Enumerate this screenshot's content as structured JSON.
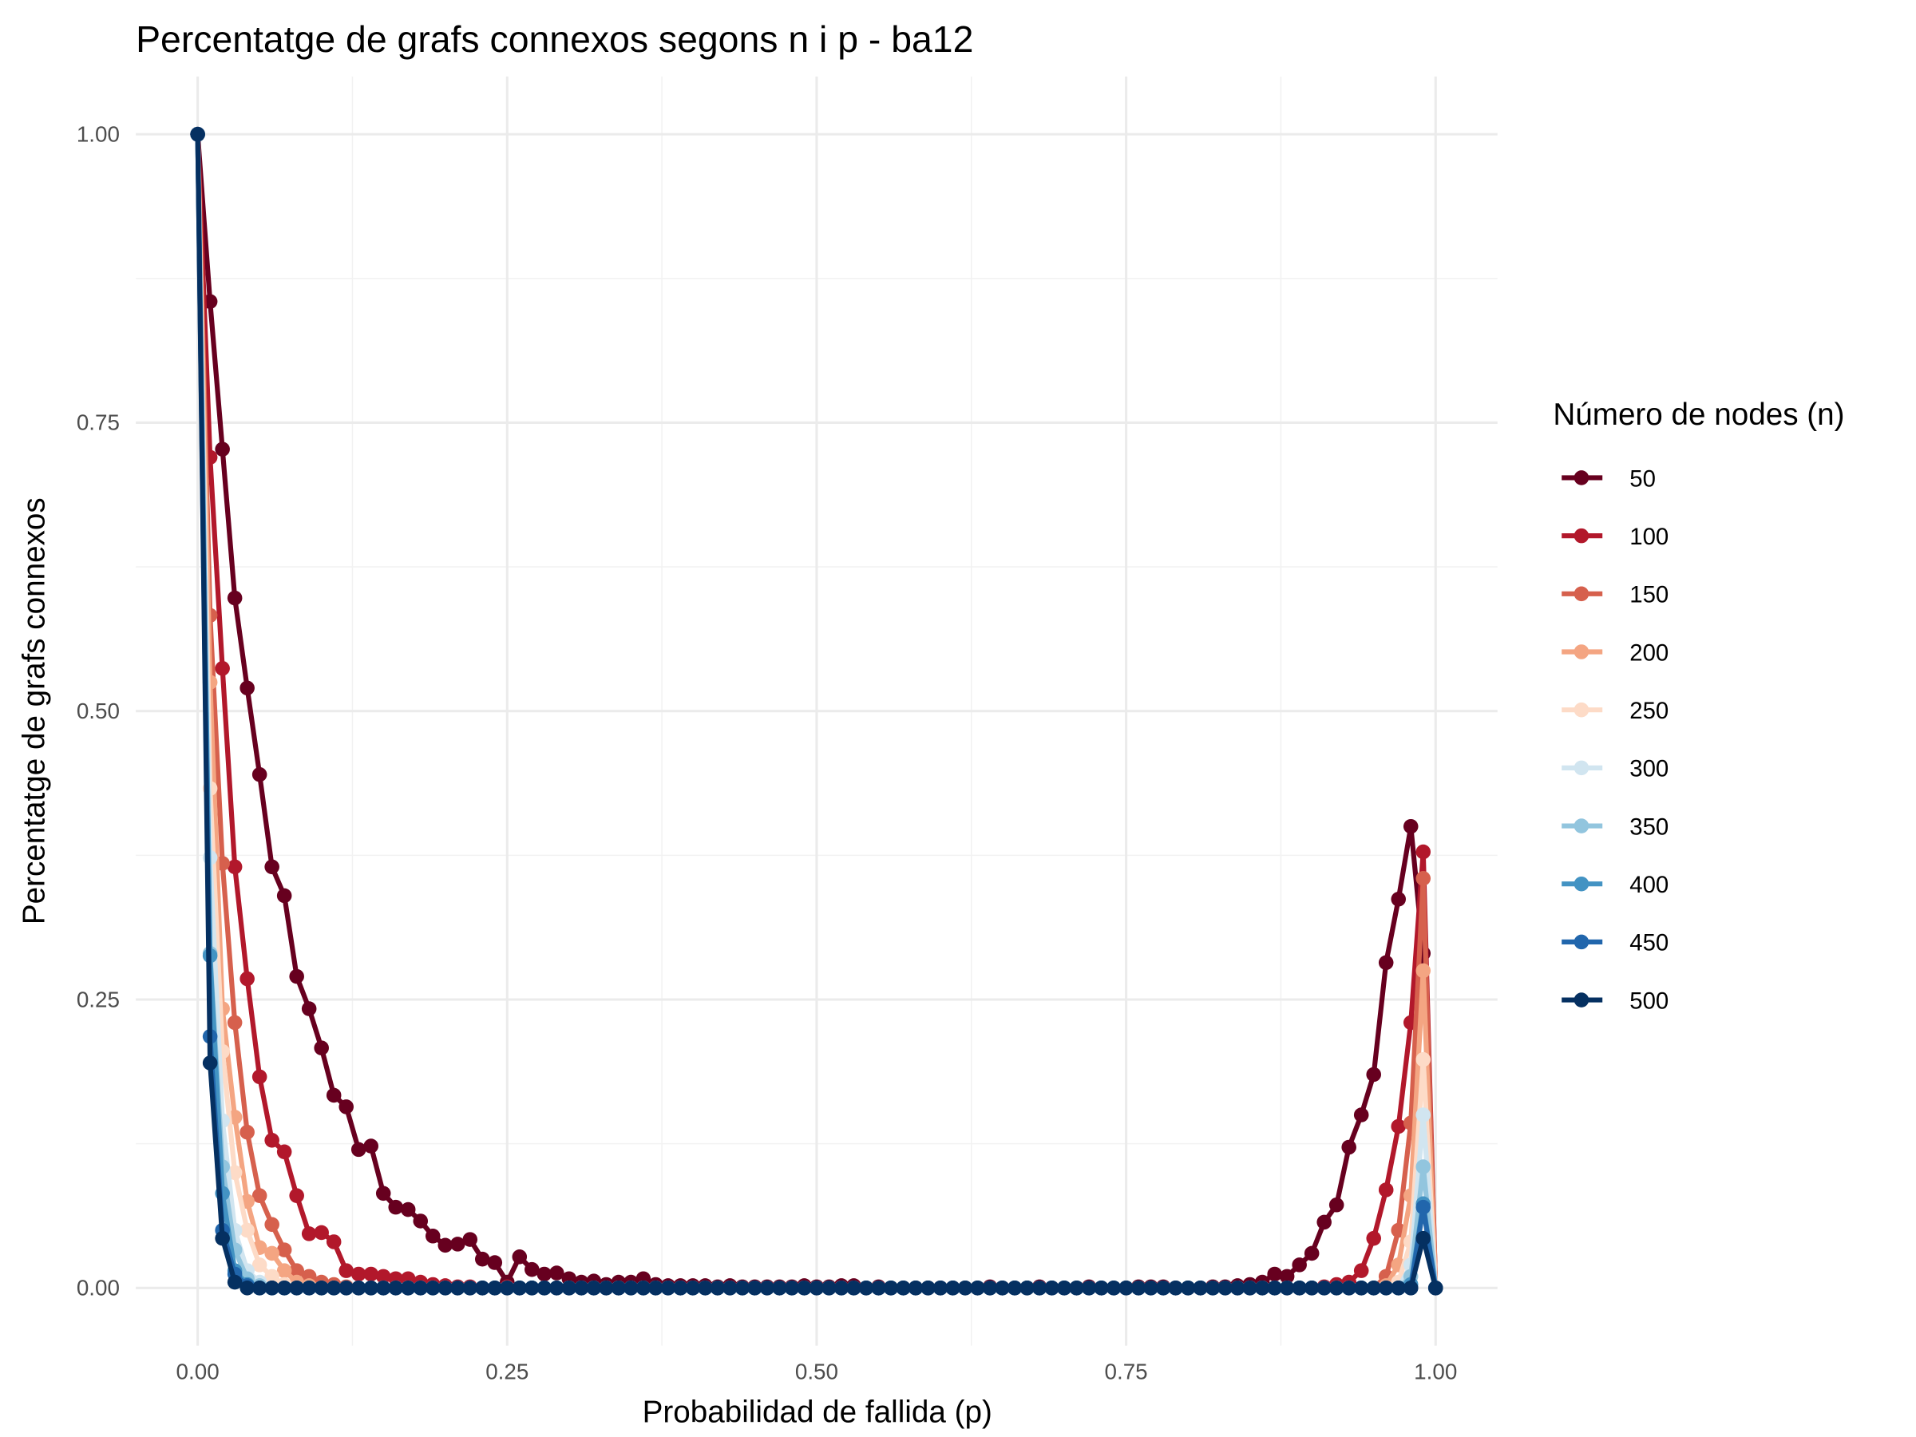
{
  "chart_data": {
    "type": "line",
    "title": "Percentatge de grafs connexos segons n i p - ba12",
    "x_label": "Probabilidad de fallida (p)",
    "y_label": "Percentatge de grafs connexos",
    "legend_title": "Número de nodes (n)",
    "legend_position": "right",
    "grid": true,
    "minor_grid": true,
    "markers": true,
    "xlim": [
      -0.05,
      1.05
    ],
    "ylim": [
      -0.05,
      1.05
    ],
    "xticks": [
      {
        "value": 0,
        "label": "0.00"
      },
      {
        "value": 0.25,
        "label": "0.25"
      },
      {
        "value": 0.5,
        "label": "0.50"
      },
      {
        "value": 0.75,
        "label": "0.75"
      },
      {
        "value": 1,
        "label": "1.00"
      }
    ],
    "yticks": [
      {
        "value": 0,
        "label": "0.00"
      },
      {
        "value": 0.25,
        "label": "0.25"
      },
      {
        "value": 0.5,
        "label": "0.50"
      },
      {
        "value": 0.75,
        "label": "0.75"
      },
      {
        "value": 1,
        "label": "1.00"
      }
    ],
    "x": [
      0,
      0.01,
      0.02,
      0.03,
      0.04,
      0.05,
      0.06,
      0.07,
      0.08,
      0.09,
      0.1,
      0.11,
      0.12,
      0.13,
      0.14,
      0.15,
      0.16,
      0.17,
      0.18,
      0.19,
      0.2,
      0.21,
      0.22,
      0.23,
      0.24,
      0.25,
      0.26,
      0.27,
      0.28,
      0.29,
      0.3,
      0.31,
      0.32,
      0.33,
      0.34,
      0.35,
      0.36,
      0.37,
      0.38,
      0.39,
      0.4,
      0.41,
      0.42,
      0.43,
      0.44,
      0.45,
      0.46,
      0.47,
      0.48,
      0.49,
      0.5,
      0.51,
      0.52,
      0.53,
      0.54,
      0.55,
      0.56,
      0.57,
      0.58,
      0.59,
      0.6,
      0.61,
      0.62,
      0.63,
      0.64,
      0.65,
      0.66,
      0.67,
      0.68,
      0.69,
      0.7,
      0.71,
      0.72,
      0.73,
      0.74,
      0.75,
      0.76,
      0.77,
      0.78,
      0.79,
      0.8,
      0.81,
      0.82,
      0.83,
      0.84,
      0.85,
      0.86,
      0.87,
      0.88,
      0.89,
      0.9,
      0.91,
      0.92,
      0.93,
      0.94,
      0.95,
      0.96,
      0.97,
      0.98,
      0.99,
      1
    ],
    "series": [
      {
        "name": "50",
        "color": "#67001f",
        "values": [
          1,
          0.855,
          0.727,
          0.598,
          0.52,
          0.445,
          0.365,
          0.34,
          0.27,
          0.242,
          0.208,
          0.167,
          0.157,
          0.12,
          0.123,
          0.082,
          0.07,
          0.068,
          0.058,
          0.045,
          0.037,
          0.038,
          0.042,
          0.025,
          0.022,
          0.005,
          0.027,
          0.016,
          0.012,
          0.013,
          0.008,
          0.005,
          0.006,
          0.003,
          0.005,
          0.005,
          0.008,
          0.003,
          0.002,
          0.002,
          0.002,
          0.002,
          0.001,
          0.002,
          0.001,
          0.001,
          0.001,
          0.001,
          0.001,
          0.002,
          0.001,
          0.001,
          0.002,
          0.002,
          0,
          0.001,
          0,
          0,
          0,
          0,
          0,
          0,
          0,
          0,
          0.001,
          0,
          0,
          0,
          0.001,
          0,
          0,
          0,
          0.001,
          0,
          0,
          0,
          0.001,
          0.001,
          0.001,
          0,
          0,
          0,
          0.001,
          0.001,
          0.002,
          0.003,
          0.005,
          0.012,
          0.01,
          0.02,
          0.03,
          0.057,
          0.072,
          0.122,
          0.15,
          0.185,
          0.282,
          0.337,
          0.4,
          0.29,
          0
        ]
      },
      {
        "name": "100",
        "color": "#b2182b",
        "values": [
          1,
          0.72,
          0.537,
          0.365,
          0.268,
          0.183,
          0.128,
          0.118,
          0.08,
          0.047,
          0.048,
          0.04,
          0.015,
          0.012,
          0.012,
          0.01,
          0.008,
          0.008,
          0.005,
          0.003,
          0.002,
          0.001,
          0.001,
          0,
          0,
          0.001,
          0,
          0,
          0,
          0,
          0,
          0,
          0,
          0,
          0,
          0,
          0,
          0,
          0,
          0,
          0,
          0,
          0,
          0,
          0,
          0,
          0,
          0,
          0,
          0,
          0,
          0,
          0,
          0,
          0,
          0,
          0,
          0,
          0,
          0,
          0,
          0,
          0,
          0,
          0,
          0,
          0,
          0,
          0,
          0,
          0,
          0,
          0,
          0,
          0,
          0,
          0,
          0,
          0,
          0,
          0,
          0,
          0,
          0,
          0,
          0,
          0,
          0,
          0,
          0,
          0,
          0.001,
          0.003,
          0.005,
          0.015,
          0.043,
          0.085,
          0.14,
          0.23,
          0.378,
          0
        ]
      },
      {
        "name": "150",
        "color": "#d6604d",
        "values": [
          1,
          0.583,
          0.368,
          0.23,
          0.135,
          0.08,
          0.055,
          0.033,
          0.015,
          0.01,
          0.005,
          0.003,
          0.001,
          0,
          0,
          0,
          0,
          0,
          0,
          0,
          0,
          0,
          0,
          0,
          0,
          0,
          0,
          0,
          0,
          0,
          0,
          0,
          0,
          0,
          0,
          0,
          0,
          0,
          0,
          0,
          0,
          0,
          0,
          0,
          0,
          0,
          0,
          0,
          0,
          0,
          0,
          0,
          0,
          0,
          0,
          0,
          0,
          0,
          0,
          0,
          0,
          0,
          0,
          0,
          0,
          0,
          0,
          0,
          0,
          0,
          0,
          0,
          0,
          0,
          0,
          0,
          0,
          0,
          0,
          0,
          0,
          0,
          0,
          0,
          0,
          0,
          0,
          0,
          0,
          0,
          0,
          0,
          0,
          0,
          0,
          0,
          0.01,
          0.05,
          0.143,
          0.355,
          0
        ]
      },
      {
        "name": "200",
        "color": "#f4a582",
        "values": [
          1,
          0.525,
          0.242,
          0.148,
          0.075,
          0.035,
          0.03,
          0.015,
          0.005,
          0.002,
          0,
          0,
          0,
          0,
          0,
          0,
          0,
          0,
          0,
          0,
          0,
          0,
          0,
          0,
          0,
          0,
          0,
          0,
          0,
          0,
          0,
          0,
          0,
          0,
          0,
          0,
          0,
          0,
          0,
          0,
          0,
          0,
          0,
          0,
          0,
          0,
          0,
          0,
          0,
          0,
          0,
          0,
          0,
          0,
          0,
          0,
          0,
          0,
          0,
          0,
          0,
          0,
          0,
          0,
          0,
          0,
          0,
          0,
          0,
          0,
          0,
          0,
          0,
          0,
          0,
          0,
          0,
          0,
          0,
          0,
          0,
          0,
          0,
          0,
          0,
          0,
          0,
          0,
          0,
          0,
          0,
          0,
          0,
          0,
          0,
          0,
          0.002,
          0.02,
          0.08,
          0.275,
          0
        ]
      },
      {
        "name": "250",
        "color": "#fddbc7",
        "values": [
          1,
          0.433,
          0.205,
          0.1,
          0.05,
          0.02,
          0.01,
          0.003,
          0,
          0,
          0,
          0,
          0,
          0,
          0,
          0,
          0,
          0,
          0,
          0,
          0,
          0,
          0,
          0,
          0,
          0,
          0,
          0,
          0,
          0,
          0,
          0,
          0,
          0,
          0,
          0,
          0,
          0,
          0,
          0,
          0,
          0,
          0,
          0,
          0,
          0,
          0,
          0,
          0,
          0,
          0,
          0,
          0,
          0,
          0,
          0,
          0,
          0,
          0,
          0,
          0,
          0,
          0,
          0,
          0,
          0,
          0,
          0,
          0,
          0,
          0,
          0,
          0,
          0,
          0,
          0,
          0,
          0,
          0,
          0,
          0,
          0,
          0,
          0,
          0,
          0,
          0,
          0,
          0,
          0,
          0,
          0,
          0,
          0,
          0,
          0,
          0,
          0.005,
          0.04,
          0.198,
          0
        ]
      },
      {
        "name": "300",
        "color": "#d1e5f0",
        "values": [
          1,
          0.373,
          0.145,
          0.05,
          0.015,
          0.005,
          0,
          0,
          0,
          0,
          0,
          0,
          0,
          0,
          0,
          0,
          0,
          0,
          0,
          0,
          0,
          0,
          0,
          0,
          0,
          0,
          0,
          0,
          0,
          0,
          0,
          0,
          0,
          0,
          0,
          0,
          0,
          0,
          0,
          0,
          0,
          0,
          0,
          0,
          0,
          0,
          0,
          0,
          0,
          0,
          0,
          0,
          0,
          0,
          0,
          0,
          0,
          0,
          0,
          0,
          0,
          0,
          0,
          0,
          0,
          0,
          0,
          0,
          0,
          0,
          0,
          0,
          0,
          0,
          0,
          0,
          0,
          0,
          0,
          0,
          0,
          0,
          0,
          0,
          0,
          0,
          0,
          0,
          0,
          0,
          0,
          0,
          0,
          0,
          0,
          0,
          0,
          0,
          0.02,
          0.15,
          0
        ]
      },
      {
        "name": "350",
        "color": "#92c5de",
        "values": [
          1,
          0.29,
          0.105,
          0.033,
          0.008,
          0.002,
          0,
          0,
          0,
          0,
          0,
          0,
          0,
          0,
          0,
          0,
          0,
          0,
          0,
          0,
          0,
          0,
          0,
          0,
          0,
          0,
          0,
          0,
          0,
          0,
          0,
          0,
          0,
          0,
          0,
          0,
          0,
          0,
          0,
          0,
          0,
          0,
          0,
          0,
          0,
          0,
          0,
          0,
          0,
          0,
          0,
          0,
          0,
          0,
          0,
          0,
          0,
          0,
          0,
          0,
          0,
          0,
          0,
          0,
          0,
          0,
          0,
          0,
          0,
          0,
          0,
          0,
          0,
          0,
          0,
          0,
          0,
          0,
          0,
          0,
          0,
          0,
          0,
          0,
          0,
          0,
          0,
          0,
          0,
          0,
          0,
          0,
          0,
          0,
          0,
          0,
          0,
          0,
          0.01,
          0.105,
          0
        ]
      },
      {
        "name": "400",
        "color": "#4393c3",
        "values": [
          1,
          0.288,
          0.082,
          0.015,
          0.003,
          0,
          0,
          0,
          0,
          0,
          0,
          0,
          0,
          0,
          0,
          0,
          0,
          0,
          0,
          0,
          0,
          0,
          0,
          0,
          0,
          0,
          0,
          0,
          0,
          0,
          0,
          0,
          0,
          0,
          0,
          0,
          0,
          0,
          0,
          0,
          0,
          0,
          0,
          0,
          0,
          0,
          0,
          0,
          0,
          0,
          0,
          0,
          0,
          0,
          0,
          0,
          0,
          0,
          0,
          0,
          0,
          0,
          0,
          0,
          0,
          0,
          0,
          0,
          0,
          0,
          0,
          0,
          0,
          0,
          0,
          0,
          0,
          0,
          0,
          0,
          0,
          0,
          0,
          0,
          0,
          0,
          0,
          0,
          0,
          0,
          0,
          0,
          0,
          0,
          0,
          0,
          0,
          0,
          0.003,
          0.073,
          0
        ]
      },
      {
        "name": "450",
        "color": "#2166ac",
        "values": [
          1,
          0.218,
          0.05,
          0.012,
          0.002,
          0,
          0,
          0,
          0,
          0,
          0,
          0,
          0,
          0,
          0,
          0,
          0,
          0,
          0,
          0,
          0,
          0,
          0,
          0,
          0,
          0,
          0,
          0,
          0,
          0,
          0,
          0,
          0,
          0,
          0,
          0,
          0,
          0,
          0,
          0,
          0,
          0,
          0,
          0,
          0,
          0,
          0,
          0,
          0,
          0,
          0,
          0,
          0,
          0,
          0,
          0,
          0,
          0,
          0,
          0,
          0,
          0,
          0,
          0,
          0,
          0,
          0,
          0,
          0,
          0,
          0,
          0,
          0,
          0,
          0,
          0,
          0,
          0,
          0,
          0,
          0,
          0,
          0,
          0,
          0,
          0,
          0,
          0,
          0,
          0,
          0,
          0,
          0,
          0,
          0,
          0,
          0,
          0,
          0,
          0.07,
          0
        ]
      },
      {
        "name": "500",
        "color": "#053061",
        "values": [
          1,
          0.195,
          0.043,
          0.005,
          0,
          0,
          0,
          0,
          0,
          0,
          0,
          0,
          0,
          0,
          0,
          0,
          0,
          0,
          0,
          0,
          0,
          0,
          0,
          0,
          0,
          0,
          0,
          0,
          0,
          0,
          0,
          0,
          0,
          0,
          0,
          0,
          0,
          0,
          0,
          0,
          0,
          0,
          0,
          0,
          0,
          0,
          0,
          0,
          0,
          0,
          0,
          0,
          0,
          0,
          0,
          0,
          0,
          0,
          0,
          0,
          0,
          0,
          0,
          0,
          0,
          0,
          0,
          0,
          0,
          0,
          0,
          0,
          0,
          0,
          0,
          0,
          0,
          0,
          0,
          0,
          0,
          0,
          0,
          0,
          0,
          0,
          0,
          0,
          0,
          0,
          0,
          0,
          0,
          0,
          0,
          0,
          0,
          0,
          0,
          0.043,
          0
        ]
      }
    ]
  }
}
